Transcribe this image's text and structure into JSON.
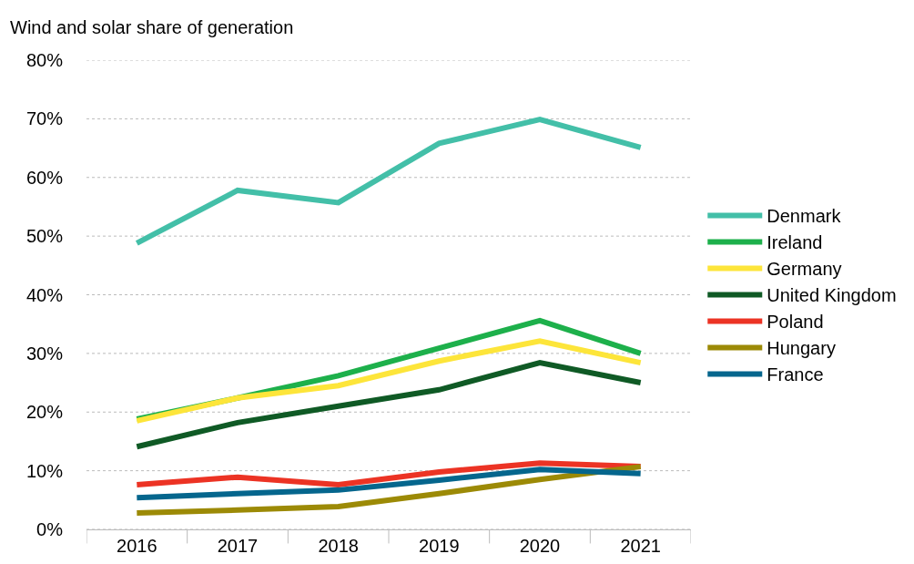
{
  "chart_data": {
    "type": "line",
    "ylabel": "Wind and solar share of generation",
    "categories": [
      "2016",
      "2017",
      "2018",
      "2019",
      "2020",
      "2021"
    ],
    "series": [
      {
        "name": "Denmark",
        "color": "#43bfa8",
        "values": [
          48.8,
          57.8,
          55.7,
          65.8,
          69.9,
          65.1
        ]
      },
      {
        "name": "Ireland",
        "color": "#1db04b",
        "values": [
          18.8,
          22.4,
          26.2,
          30.9,
          35.6,
          30.0
        ]
      },
      {
        "name": "Germany",
        "color": "#fde53a",
        "values": [
          18.5,
          22.4,
          24.5,
          28.7,
          32.1,
          28.4
        ]
      },
      {
        "name": "United Kingdom",
        "color": "#0f5a25",
        "values": [
          14.1,
          18.2,
          21.0,
          23.8,
          28.4,
          25.0
        ]
      },
      {
        "name": "Poland",
        "color": "#ec3324",
        "values": [
          7.6,
          8.9,
          7.6,
          9.8,
          11.3,
          10.7
        ]
      },
      {
        "name": "Hungary",
        "color": "#9c8a06",
        "values": [
          2.8,
          3.3,
          3.9,
          6.1,
          8.5,
          10.7
        ]
      },
      {
        "name": "France",
        "color": "#05668d",
        "values": [
          5.4,
          6.1,
          6.7,
          8.4,
          10.2,
          9.5
        ]
      }
    ],
    "ylim": [
      0,
      80
    ],
    "yticks": [
      {
        "value": 0,
        "label": "0%"
      },
      {
        "value": 10,
        "label": "10%"
      },
      {
        "value": 20,
        "label": "20%"
      },
      {
        "value": 30,
        "label": "30%"
      },
      {
        "value": 40,
        "label": "40%"
      },
      {
        "value": 50,
        "label": "50%"
      },
      {
        "value": 60,
        "label": "60%"
      },
      {
        "value": 70,
        "label": "70%"
      },
      {
        "value": 80,
        "label": "80%"
      }
    ],
    "grid": "y",
    "legend": "right",
    "marker": "none",
    "line_style": "solid"
  }
}
